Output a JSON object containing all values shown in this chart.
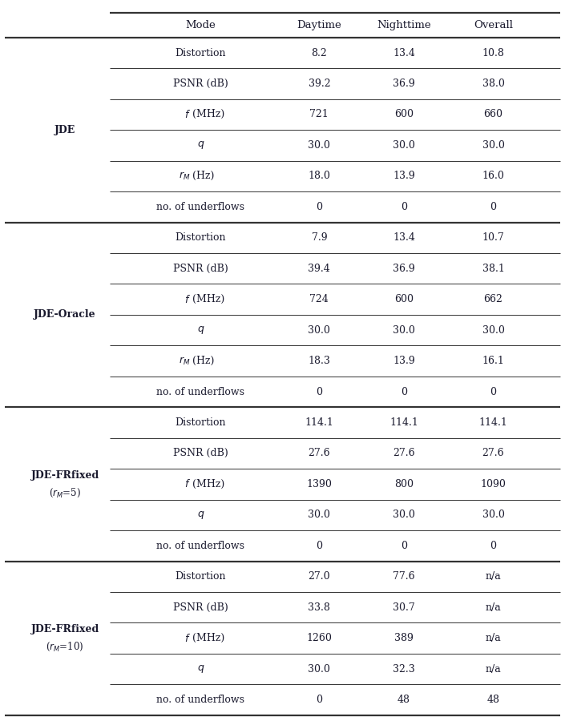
{
  "col_headers": [
    "Mode",
    "Daytime",
    "Nighttime",
    "Overall"
  ],
  "sections": [
    {
      "label": "JDE",
      "label_multiline": false,
      "rows": [
        {
          "mode": "Distortion",
          "daytime": "8.2",
          "nighttime": "13.4",
          "overall": "10.8",
          "mode_type": "normal"
        },
        {
          "mode": "PSNR (dB)",
          "daytime": "39.2",
          "nighttime": "36.9",
          "overall": "38.0",
          "mode_type": "normal"
        },
        {
          "mode": "f_MHz",
          "daytime": "721",
          "nighttime": "600",
          "overall": "660",
          "mode_type": "f_MHz"
        },
        {
          "mode": "q",
          "daytime": "30.0",
          "nighttime": "30.0",
          "overall": "30.0",
          "mode_type": "q"
        },
        {
          "mode": "rM_Hz",
          "daytime": "18.0",
          "nighttime": "13.9",
          "overall": "16.0",
          "mode_type": "rM_Hz"
        },
        {
          "mode": "no. of underflows",
          "daytime": "0",
          "nighttime": "0",
          "overall": "0",
          "mode_type": "normal"
        }
      ]
    },
    {
      "label": "JDE-Oracle",
      "label_multiline": false,
      "rows": [
        {
          "mode": "Distortion",
          "daytime": "7.9",
          "nighttime": "13.4",
          "overall": "10.7",
          "mode_type": "normal"
        },
        {
          "mode": "PSNR (dB)",
          "daytime": "39.4",
          "nighttime": "36.9",
          "overall": "38.1",
          "mode_type": "normal"
        },
        {
          "mode": "f_MHz",
          "daytime": "724",
          "nighttime": "600",
          "overall": "662",
          "mode_type": "f_MHz"
        },
        {
          "mode": "q",
          "daytime": "30.0",
          "nighttime": "30.0",
          "overall": "30.0",
          "mode_type": "q"
        },
        {
          "mode": "rM_Hz",
          "daytime": "18.3",
          "nighttime": "13.9",
          "overall": "16.1",
          "mode_type": "rM_Hz"
        },
        {
          "mode": "no. of underflows",
          "daytime": "0",
          "nighttime": "0",
          "overall": "0",
          "mode_type": "normal"
        }
      ]
    },
    {
      "label": "JDE-FRfixed",
      "label2": "(rₘ=5)",
      "label_multiline": true,
      "rows": [
        {
          "mode": "Distortion",
          "daytime": "114.1",
          "nighttime": "114.1",
          "overall": "114.1",
          "mode_type": "normal"
        },
        {
          "mode": "PSNR (dB)",
          "daytime": "27.6",
          "nighttime": "27.6",
          "overall": "27.6",
          "mode_type": "normal"
        },
        {
          "mode": "f_MHz",
          "daytime": "1390",
          "nighttime": "800",
          "overall": "1090",
          "mode_type": "f_MHz"
        },
        {
          "mode": "q",
          "daytime": "30.0",
          "nighttime": "30.0",
          "overall": "30.0",
          "mode_type": "q"
        },
        {
          "mode": "no. of underflows",
          "daytime": "0",
          "nighttime": "0",
          "overall": "0",
          "mode_type": "normal"
        }
      ]
    },
    {
      "label": "JDE-FRfixed",
      "label2": "(rₘ=10)",
      "label_multiline": true,
      "rows": [
        {
          "mode": "Distortion",
          "daytime": "27.0",
          "nighttime": "77.6",
          "overall": "n/a",
          "mode_type": "normal"
        },
        {
          "mode": "PSNR (dB)",
          "daytime": "33.8",
          "nighttime": "30.7",
          "overall": "n/a",
          "mode_type": "normal"
        },
        {
          "mode": "f_MHz",
          "daytime": "1260",
          "nighttime": "389",
          "overall": "n/a",
          "mode_type": "f_MHz"
        },
        {
          "mode": "q",
          "daytime": "30.0",
          "nighttime": "32.3",
          "overall": "n/a",
          "mode_type": "q"
        },
        {
          "mode": "no. of underflows",
          "daytime": "0",
          "nighttime": "48",
          "overall": "48",
          "mode_type": "normal"
        }
      ]
    }
  ],
  "bg_color": "#ffffff",
  "text_color": "#1a1a2e",
  "line_color": "#333333",
  "font_size": 9.0,
  "header_font_size": 9.5
}
